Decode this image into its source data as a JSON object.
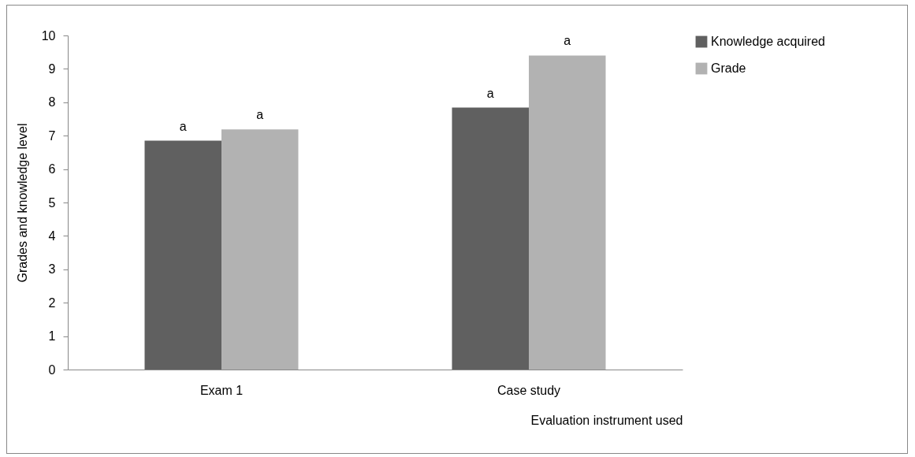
{
  "chart_data": {
    "type": "bar",
    "xlabel": "Evaluation instrument used",
    "ylabel": "Grades and knowledge level",
    "categories": [
      "Exam 1",
      "Case study"
    ],
    "series": [
      {
        "name": "Knowledge acquired",
        "color": "#606060",
        "values": [
          6.85,
          7.84
        ]
      },
      {
        "name": "Grade",
        "color": "#b2b2b2",
        "values": [
          7.19,
          9.4
        ]
      }
    ],
    "ylim": [
      0,
      10
    ],
    "yticks": [
      0,
      1,
      2,
      3,
      4,
      5,
      6,
      7,
      8,
      9,
      10
    ],
    "grid": false,
    "legend": "right",
    "annotations": [
      {
        "text": "a",
        "x": "Exam 1",
        "y": 6.85
      },
      {
        "text": "a",
        "x": "Exam 1",
        "y": 7.19
      },
      {
        "text": "a",
        "x": "Case study",
        "y": 7.84
      },
      {
        "text": "a",
        "x": "Case study",
        "y": 9.4
      }
    ]
  }
}
